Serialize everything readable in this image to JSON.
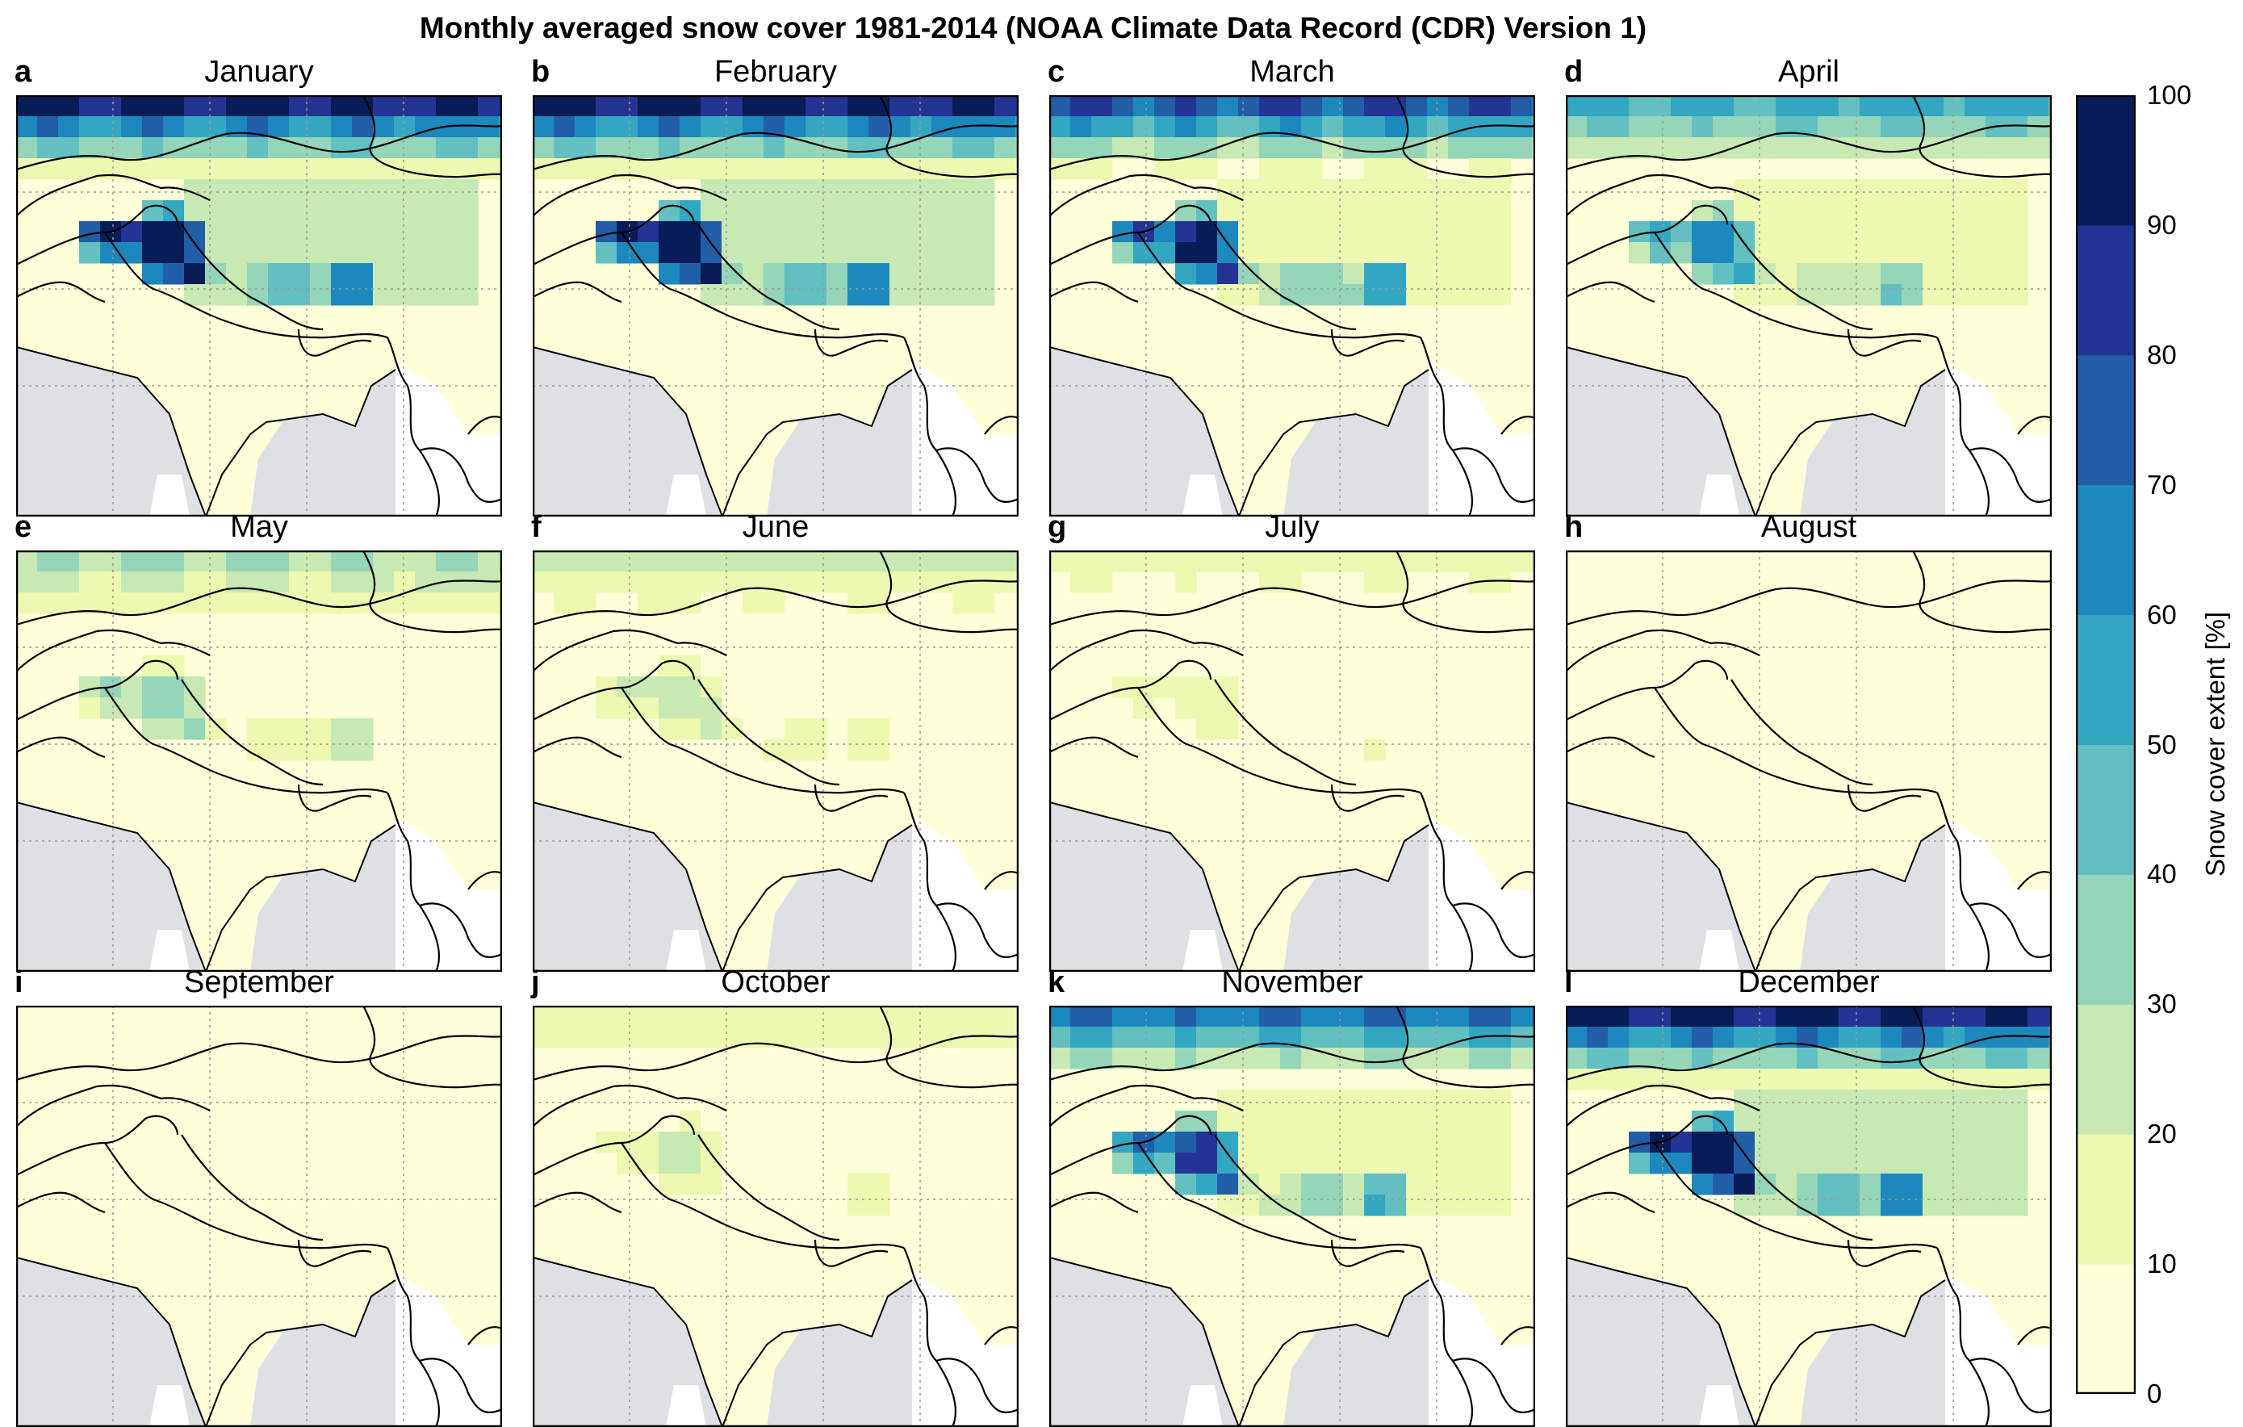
{
  "title": "Monthly averaged snow cover 1981-2014 (NOAA Climate Data Record (CDR) Version 1)",
  "colorbar": {
    "label": "Snow cover extent [%]",
    "ticks": [
      "0",
      "10",
      "20",
      "30",
      "40",
      "50",
      "60",
      "70",
      "80",
      "90",
      "100"
    ],
    "colors": [
      "#ffffd9",
      "#edf8b1",
      "#c7e9b4",
      "#95d5b9",
      "#63c0c1",
      "#33a7c2",
      "#1d88be",
      "#225ea8",
      "#243494",
      "#081d58"
    ]
  },
  "colors": {
    "ocean": "#dfe0e4",
    "land_outside": "#ffffff",
    "border": "#000000",
    "grid": "#9a9a9a"
  },
  "panels": [
    {
      "letter": "a",
      "month": "January"
    },
    {
      "letter": "b",
      "month": "February"
    },
    {
      "letter": "c",
      "month": "March"
    },
    {
      "letter": "d",
      "month": "April"
    },
    {
      "letter": "e",
      "month": "May"
    },
    {
      "letter": "f",
      "month": "June"
    },
    {
      "letter": "g",
      "month": "July"
    },
    {
      "letter": "h",
      "month": "August"
    },
    {
      "letter": "i",
      "month": "September"
    },
    {
      "letter": "j",
      "month": "October"
    },
    {
      "letter": "k",
      "month": "November"
    },
    {
      "letter": "l",
      "month": "December"
    }
  ],
  "snow_seasonal_intensity": [
    1.0,
    1.0,
    0.85,
    0.6,
    0.33,
    0.26,
    0.15,
    0.07,
    0.05,
    0.2,
    0.75,
    1.0
  ]
}
